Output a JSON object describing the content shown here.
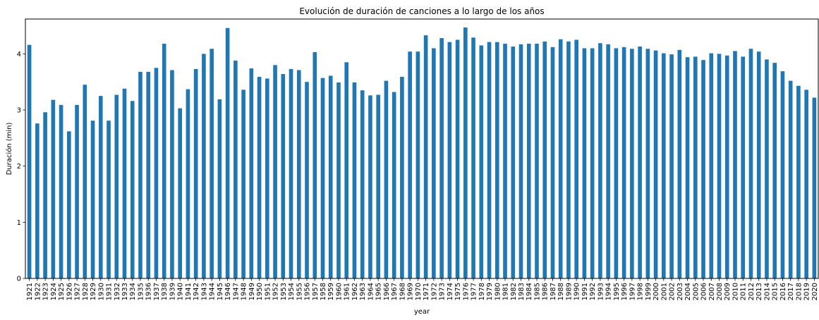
{
  "chart_data": {
    "type": "bar",
    "title": "Evolución de duración de canciones a lo largo de los años",
    "xlabel": "year",
    "ylabel": "Duración (min)",
    "ylim": [
      0,
      4.62
    ],
    "yticks": [
      0,
      1,
      2,
      3,
      4
    ],
    "grid": false,
    "bar_color": "#1f77b4",
    "categories": [
      "1921",
      "1922",
      "1923",
      "1924",
      "1925",
      "1926",
      "1927",
      "1928",
      "1929",
      "1930",
      "1931",
      "1932",
      "1933",
      "1934",
      "1935",
      "1936",
      "1937",
      "1938",
      "1939",
      "1940",
      "1941",
      "1942",
      "1943",
      "1944",
      "1945",
      "1946",
      "1947",
      "1948",
      "1949",
      "1950",
      "1951",
      "1952",
      "1953",
      "1954",
      "1955",
      "1956",
      "1957",
      "1958",
      "1959",
      "1960",
      "1961",
      "1962",
      "1963",
      "1964",
      "1965",
      "1966",
      "1967",
      "1968",
      "1969",
      "1970",
      "1971",
      "1972",
      "1973",
      "1974",
      "1975",
      "1976",
      "1977",
      "1978",
      "1979",
      "1980",
      "1981",
      "1982",
      "1983",
      "1984",
      "1985",
      "1986",
      "1987",
      "1988",
      "1989",
      "1990",
      "1991",
      "1992",
      "1993",
      "1994",
      "1995",
      "1996",
      "1997",
      "1998",
      "1999",
      "2000",
      "2001",
      "2002",
      "2003",
      "2004",
      "2005",
      "2006",
      "2007",
      "2008",
      "2009",
      "2010",
      "2011",
      "2012",
      "2013",
      "2014",
      "2015",
      "2016",
      "2017",
      "2018",
      "2019",
      "2020"
    ],
    "values": [
      4.16,
      2.76,
      2.96,
      3.18,
      3.09,
      2.62,
      3.09,
      3.45,
      2.81,
      3.25,
      2.81,
      3.27,
      3.38,
      3.16,
      3.68,
      3.68,
      3.75,
      4.18,
      3.71,
      3.03,
      3.37,
      3.73,
      4.0,
      4.09,
      3.19,
      4.46,
      3.88,
      3.36,
      3.74,
      3.59,
      3.56,
      3.8,
      3.64,
      3.73,
      3.71,
      3.5,
      4.03,
      3.57,
      3.61,
      3.49,
      3.85,
      3.49,
      3.35,
      3.26,
      3.27,
      3.52,
      3.32,
      3.59,
      4.04,
      4.04,
      4.33,
      4.1,
      4.28,
      4.21,
      4.25,
      4.47,
      4.29,
      4.15,
      4.21,
      4.21,
      4.18,
      4.13,
      4.17,
      4.18,
      4.18,
      4.22,
      4.12,
      4.26,
      4.22,
      4.25,
      4.1,
      4.1,
      4.19,
      4.17,
      4.1,
      4.12,
      4.09,
      4.13,
      4.09,
      4.06,
      4.01,
      3.99,
      4.07,
      3.94,
      3.95,
      3.89,
      4.01,
      4.0,
      3.97,
      4.05,
      3.95,
      4.09,
      4.04,
      3.9,
      3.84,
      3.69,
      3.52,
      3.43,
      3.36,
      3.22
    ]
  }
}
